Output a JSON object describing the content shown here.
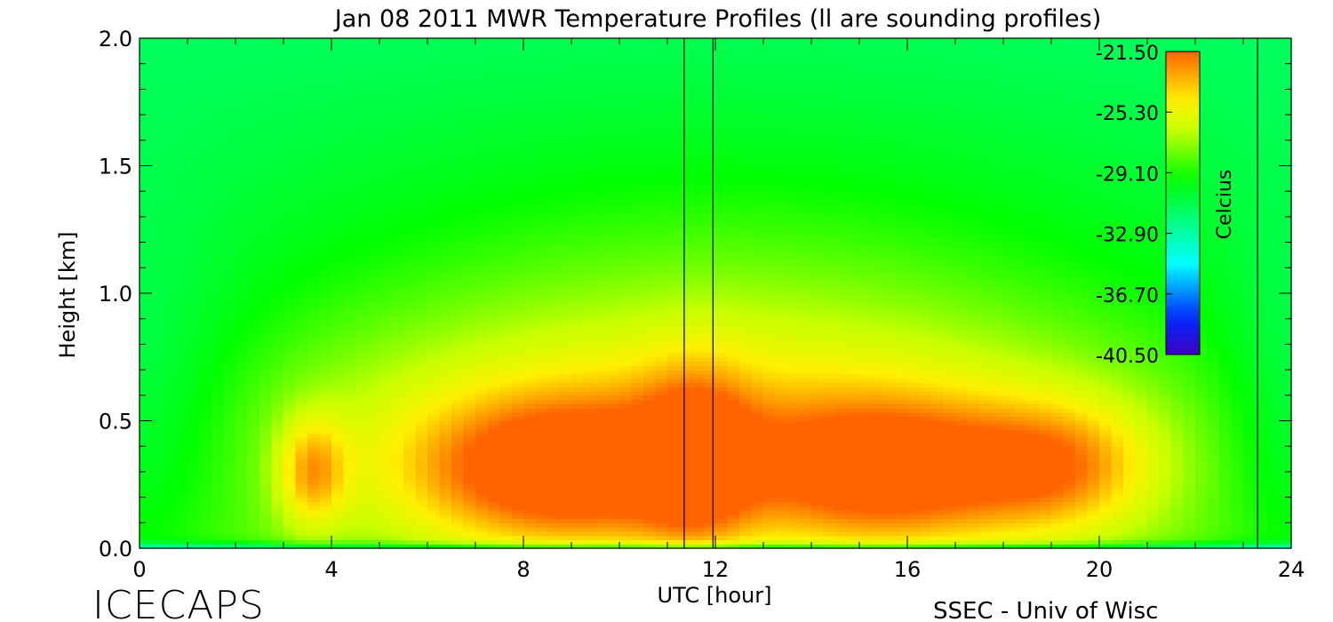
{
  "header": {
    "title": "Jan 08 2011 MWR Temperature Profiles (ll are sounding profiles)"
  },
  "footer": {
    "left_logo": "ICECAPS",
    "right_credit": "SSEC - Univ of Wisc"
  },
  "colors": {
    "warm": "#ff8000",
    "mid": "#e8ff00",
    "cool": "#00ff00",
    "cold": "#00ffff",
    "coldest": "#4000c0",
    "axis": "#000000"
  },
  "chart_data": {
    "type": "heatmap",
    "title": "Jan 08 2011 MWR Temperature Profiles (ll are sounding profiles)",
    "xlabel": "UTC [hour]",
    "ylabel": "Height [km]",
    "xlim": [
      0,
      24
    ],
    "ylim": [
      0,
      2.0
    ],
    "x_ticks": [
      "0",
      "4",
      "8",
      "12",
      "16",
      "20",
      "24"
    ],
    "y_ticks": [
      "0.0",
      "0.5",
      "1.0",
      "1.5",
      "2.0"
    ],
    "colorbar": {
      "label": "Celcius",
      "ticks": [
        "-21.50",
        "-25.30",
        "-29.10",
        "-32.90",
        "-36.70",
        "-40.50"
      ],
      "range": [
        -40.5,
        -21.5
      ]
    },
    "sounding_times": [
      11.35,
      11.95,
      23.3
    ],
    "x": [
      0,
      0.5,
      1,
      1.5,
      2,
      2.5,
      3,
      3.5,
      4,
      4.5,
      5,
      5.5,
      6,
      6.5,
      7,
      7.5,
      8,
      8.5,
      9,
      9.5,
      10,
      10.5,
      11,
      11.5,
      12,
      12.5,
      13,
      13.5,
      14,
      14.5,
      15,
      15.5,
      16,
      16.5,
      17,
      17.5,
      18,
      18.5,
      19,
      19.5,
      20,
      20.5,
      21,
      21.5,
      22,
      22.5,
      23,
      23.5,
      24
    ],
    "heights": [
      0.0,
      0.02,
      0.05,
      0.1,
      0.2,
      0.3,
      0.4,
      0.5,
      0.65,
      0.8,
      1.0,
      1.25,
      1.5,
      1.75,
      2.0
    ],
    "temperature_description": "Temperature in Celsius, warmest (~ -22 C) near 0.3 km between 6-11 UTC and 14-20 UTC, coldest (~ -33 C) at surface and near 2 km"
  }
}
